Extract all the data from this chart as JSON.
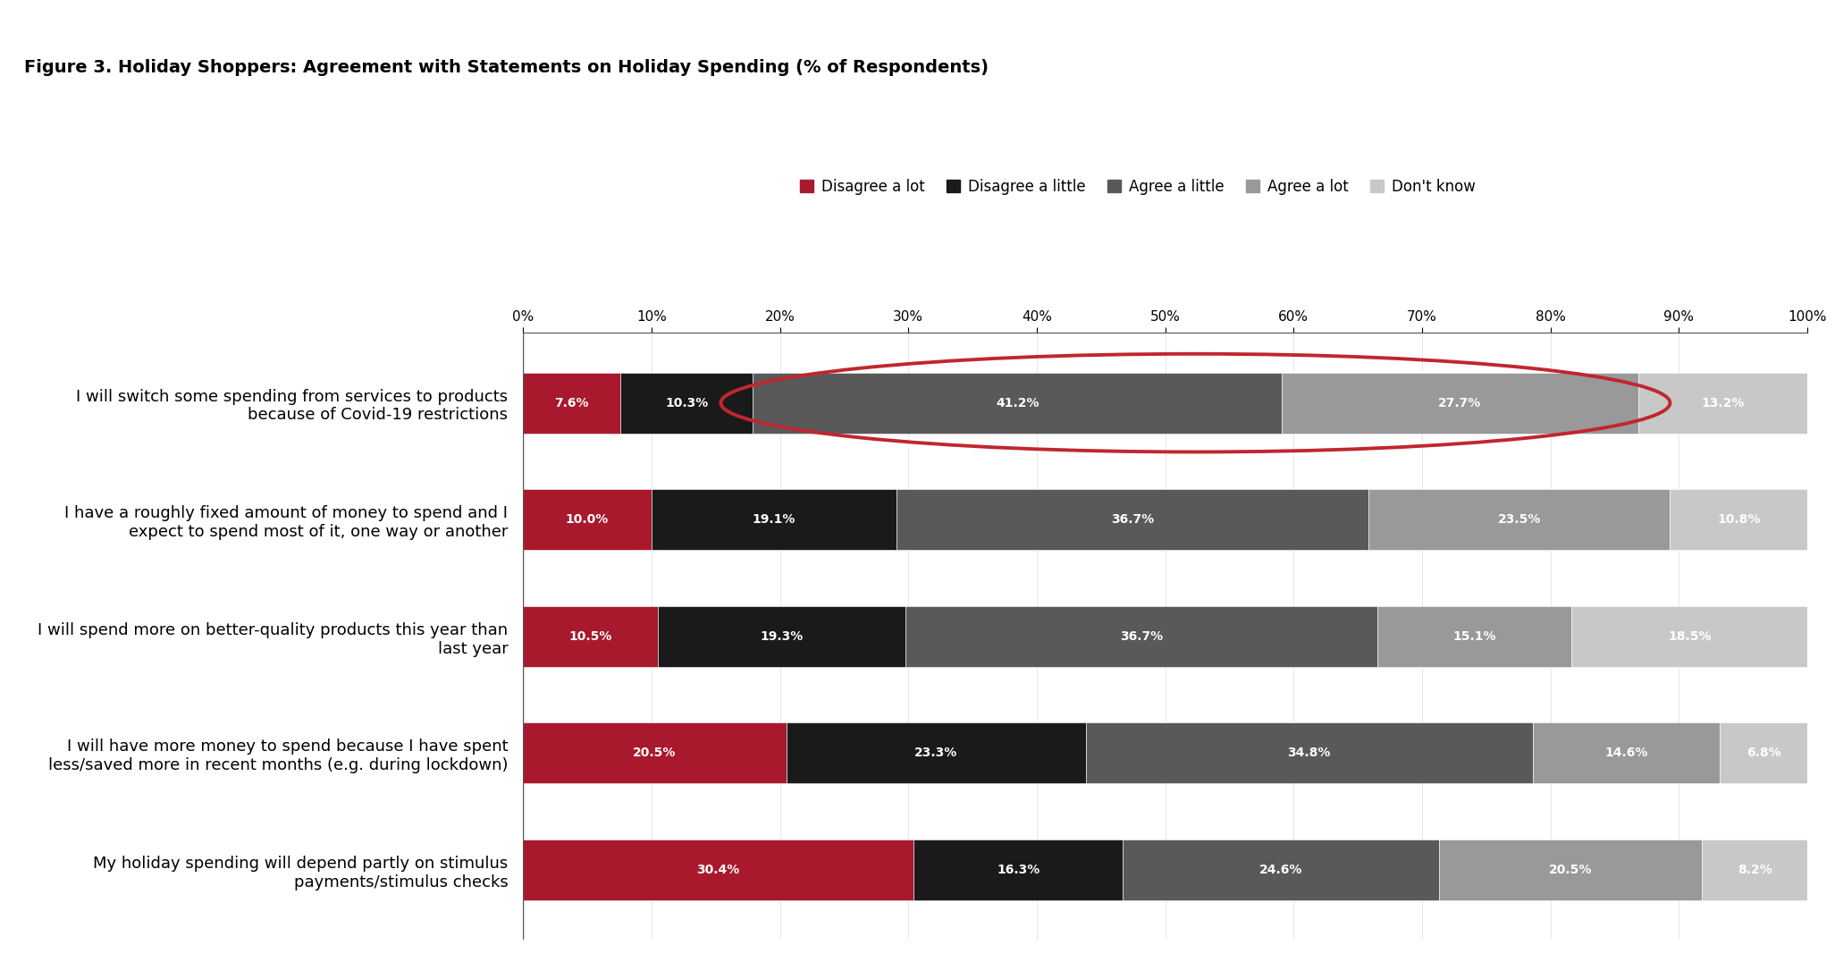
{
  "title": "Figure 3. Holiday Shoppers: Agreement with Statements on Holiday Spending (% of Respondents)",
  "categories": [
    "I will switch some spending from services to products\nbecause of Covid-19 restrictions",
    "I have a roughly fixed amount of money to spend and I\nexpect to spend most of it, one way or another",
    "I will spend more on better-quality products this year than\nlast year",
    "I will have more money to spend because I have spent\nless/saved more in recent months (e.g. during lockdown)",
    "My holiday spending will depend partly on stimulus\npayments/stimulus checks"
  ],
  "series": {
    "Disagree a lot": [
      7.6,
      10.0,
      10.5,
      20.5,
      30.4
    ],
    "Disagree a little": [
      10.3,
      19.1,
      19.3,
      23.3,
      16.3
    ],
    "Agree a little": [
      41.2,
      36.7,
      36.7,
      34.8,
      24.6
    ],
    "Agree a lot": [
      27.7,
      23.5,
      15.1,
      14.6,
      20.5
    ],
    "Don't know": [
      13.2,
      10.8,
      18.5,
      6.8,
      8.2
    ]
  },
  "colors": {
    "Disagree a lot": "#A8192E",
    "Disagree a little": "#1A1A1A",
    "Agree a little": "#595959",
    "Agree a lot": "#999999",
    "Don't know": "#C8C8C8"
  },
  "legend_order": [
    "Disagree a lot",
    "Disagree a little",
    "Agree a little",
    "Agree a lot",
    "Don't know"
  ],
  "bar_height": 0.52,
  "title_fontsize": 14,
  "label_fontsize": 13,
  "tick_fontsize": 11,
  "legend_fontsize": 12,
  "value_fontsize": 10,
  "background_color": "#FFFFFF",
  "ellipse_color": "#C0272D",
  "header_bar_color": "#1A1A1A"
}
